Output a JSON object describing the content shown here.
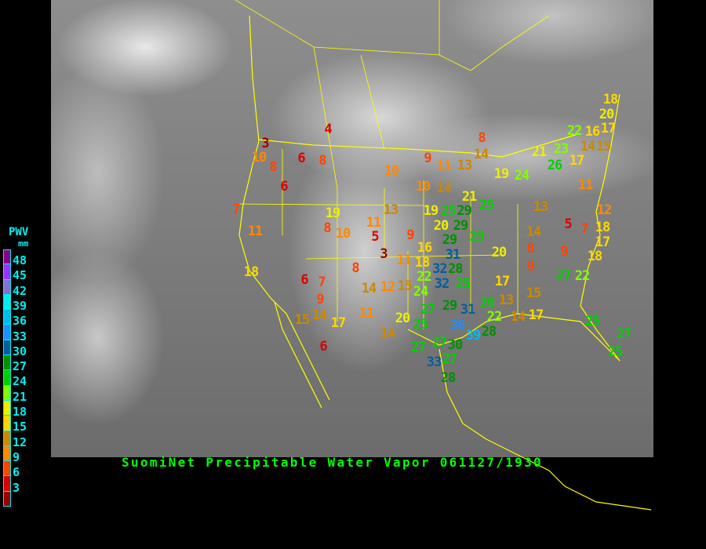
{
  "caption": "SuomiNet Precipitable Water Vapor 061127/1930",
  "legend": {
    "title": "PWV",
    "unit": "mm",
    "ticks": [
      "48",
      "45",
      "42",
      "39",
      "36",
      "33",
      "30",
      "27",
      "24",
      "21",
      "18",
      "15",
      "12",
      "9",
      "6",
      "3"
    ],
    "colors": [
      "#880088",
      "#9933ff",
      "#8470d0",
      "#00eeee",
      "#00bbee",
      "#1e90ff",
      "#005f9f",
      "#009000",
      "#00d000",
      "#80ff00",
      "#eeee00",
      "#ffd700",
      "#cc8800",
      "#ff8800",
      "#ff4400",
      "#dd0000",
      "#990000"
    ]
  },
  "stations": [
    "4",
    "3",
    "10",
    "8",
    "6",
    "8",
    "6",
    "10",
    "9",
    "11",
    "13",
    "8",
    "14",
    "19",
    "24",
    "21",
    "23",
    "26",
    "17",
    "22",
    "16",
    "14",
    "15",
    "20",
    "17",
    "18",
    "11",
    "12",
    "13",
    "14",
    "5",
    "7",
    "18",
    "17",
    "18",
    "9",
    "27",
    "22",
    "25",
    "27",
    "25",
    "8",
    "9",
    "20",
    "17",
    "15",
    "13",
    "14",
    "17",
    "26",
    "22",
    "28",
    "29",
    "31",
    "36",
    "39",
    "27",
    "27",
    "30",
    "33",
    "27",
    "28",
    "27",
    "25",
    "20",
    "20",
    "29",
    "25",
    "29",
    "31",
    "28",
    "32",
    "32",
    "25",
    "22",
    "24",
    "15",
    "16",
    "18",
    "11",
    "9",
    "21",
    "25",
    "29",
    "25",
    "19",
    "10",
    "14",
    "13",
    "7",
    "11",
    "18",
    "19",
    "8",
    "10",
    "11",
    "5",
    "3",
    "8",
    "6",
    "7",
    "9",
    "14",
    "15",
    "17",
    "11",
    "14",
    "12",
    "14",
    "6",
    "14"
  ]
}
